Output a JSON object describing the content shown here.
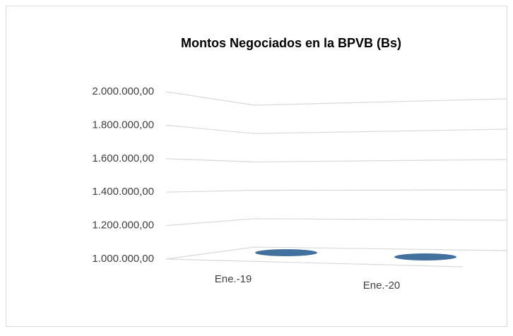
{
  "chart_data": {
    "type": "bar3d",
    "title": "Montos Negociados en la BPVB  (Bs)",
    "categories": [
      "Ene.-19",
      "Ene.-20"
    ],
    "values": [
      1000000,
      1000000
    ],
    "color": "#41719c",
    "ylim": [
      1000000,
      2000000
    ],
    "yticks": [
      {
        "value": 1000000,
        "label": "1.000.000,00"
      },
      {
        "value": 1200000,
        "label": "1.200.000,00"
      },
      {
        "value": 1400000,
        "label": "1.400.000,00"
      },
      {
        "value": 1600000,
        "label": "1.600.000,00"
      },
      {
        "value": 1800000,
        "label": "1.800.000,00"
      },
      {
        "value": 2000000,
        "label": "2.000.000,00"
      }
    ],
    "grid": true
  }
}
